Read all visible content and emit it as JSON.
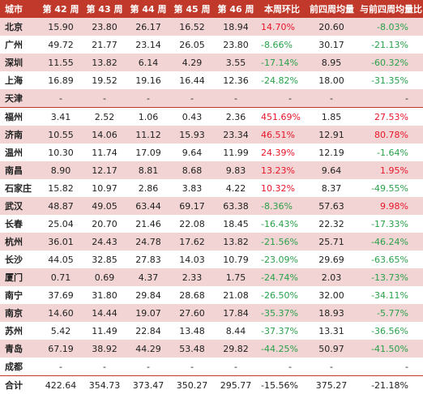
{
  "table": {
    "headers": [
      "城市",
      "第 42 周",
      "第 43 周",
      "第 44 周",
      "第 45 周",
      "第 46 周",
      "本周环比",
      "前四周均量",
      "与前四周均量比"
    ],
    "rows": [
      {
        "city": "北京",
        "w42": "15.90",
        "w43": "23.80",
        "w44": "26.17",
        "w45": "16.52",
        "w46": "18.94",
        "wow": "14.70%",
        "wow_color": "red",
        "avg4": "20.60",
        "vs_avg": "-8.03%",
        "vs_color": "green"
      },
      {
        "city": "广州",
        "w42": "49.72",
        "w43": "21.77",
        "w44": "23.14",
        "w45": "26.05",
        "w46": "23.80",
        "wow": "-8.66%",
        "wow_color": "green",
        "avg4": "30.17",
        "vs_avg": "-21.13%",
        "vs_color": "green"
      },
      {
        "city": "深圳",
        "w42": "11.55",
        "w43": "13.82",
        "w44": "6.14",
        "w45": "4.29",
        "w46": "3.55",
        "wow": "-17.14%",
        "wow_color": "green",
        "avg4": "8.95",
        "vs_avg": "-60.32%",
        "vs_color": "green"
      },
      {
        "city": "上海",
        "w42": "16.89",
        "w43": "19.52",
        "w44": "19.16",
        "w45": "16.44",
        "w46": "12.36",
        "wow": "-24.82%",
        "wow_color": "green",
        "avg4": "18.00",
        "vs_avg": "-31.35%",
        "vs_color": "green"
      },
      {
        "city": "天津",
        "w42": "-",
        "w43": "-",
        "w44": "-",
        "w45": "-",
        "w46": "-",
        "wow": "-",
        "wow_color": "black",
        "avg4": "-",
        "vs_avg": "-",
        "vs_color": "black"
      },
      {
        "city": "福州",
        "w42": "3.41",
        "w43": "2.52",
        "w44": "1.06",
        "w45": "0.43",
        "w46": "2.36",
        "wow": "451.69%",
        "wow_color": "red",
        "avg4": "1.85",
        "vs_avg": "27.53%",
        "vs_color": "red",
        "sep": true
      },
      {
        "city": "济南",
        "w42": "10.55",
        "w43": "14.06",
        "w44": "11.12",
        "w45": "15.93",
        "w46": "23.34",
        "wow": "46.51%",
        "wow_color": "red",
        "avg4": "12.91",
        "vs_avg": "80.78%",
        "vs_color": "red"
      },
      {
        "city": "温州",
        "w42": "10.30",
        "w43": "11.74",
        "w44": "17.09",
        "w45": "9.64",
        "w46": "11.99",
        "wow": "24.39%",
        "wow_color": "red",
        "avg4": "12.19",
        "vs_avg": "-1.64%",
        "vs_color": "green"
      },
      {
        "city": "南昌",
        "w42": "8.90",
        "w43": "12.17",
        "w44": "8.81",
        "w45": "8.68",
        "w46": "9.83",
        "wow": "13.23%",
        "wow_color": "red",
        "avg4": "9.64",
        "vs_avg": "1.95%",
        "vs_color": "red"
      },
      {
        "city": "石家庄",
        "w42": "15.82",
        "w43": "10.97",
        "w44": "2.86",
        "w45": "3.83",
        "w46": "4.22",
        "wow": "10.32%",
        "wow_color": "red",
        "avg4": "8.37",
        "vs_avg": "-49.55%",
        "vs_color": "green"
      },
      {
        "city": "武汉",
        "w42": "48.87",
        "w43": "49.05",
        "w44": "63.44",
        "w45": "69.17",
        "w46": "63.38",
        "wow": "-8.36%",
        "wow_color": "green",
        "avg4": "57.63",
        "vs_avg": "9.98%",
        "vs_color": "red"
      },
      {
        "city": "长春",
        "w42": "25.04",
        "w43": "20.70",
        "w44": "21.46",
        "w45": "22.08",
        "w46": "18.45",
        "wow": "-16.43%",
        "wow_color": "green",
        "avg4": "22.32",
        "vs_avg": "-17.33%",
        "vs_color": "green"
      },
      {
        "city": "杭州",
        "w42": "36.01",
        "w43": "24.43",
        "w44": "24.78",
        "w45": "17.62",
        "w46": "13.82",
        "wow": "-21.56%",
        "wow_color": "green",
        "avg4": "25.71",
        "vs_avg": "-46.24%",
        "vs_color": "green"
      },
      {
        "city": "长沙",
        "w42": "44.05",
        "w43": "32.85",
        "w44": "27.83",
        "w45": "14.03",
        "w46": "10.79",
        "wow": "-23.09%",
        "wow_color": "green",
        "avg4": "29.69",
        "vs_avg": "-63.65%",
        "vs_color": "green"
      },
      {
        "city": "厦门",
        "w42": "0.71",
        "w43": "0.69",
        "w44": "4.37",
        "w45": "2.33",
        "w46": "1.75",
        "wow": "-24.74%",
        "wow_color": "green",
        "avg4": "2.03",
        "vs_avg": "-13.73%",
        "vs_color": "green"
      },
      {
        "city": "南宁",
        "w42": "37.69",
        "w43": "31.80",
        "w44": "29.84",
        "w45": "28.68",
        "w46": "21.08",
        "wow": "-26.50%",
        "wow_color": "green",
        "avg4": "32.00",
        "vs_avg": "-34.11%",
        "vs_color": "green"
      },
      {
        "city": "南京",
        "w42": "14.60",
        "w43": "14.44",
        "w44": "19.07",
        "w45": "27.60",
        "w46": "17.84",
        "wow": "-35.37%",
        "wow_color": "green",
        "avg4": "18.93",
        "vs_avg": "-5.77%",
        "vs_color": "green"
      },
      {
        "city": "苏州",
        "w42": "5.42",
        "w43": "11.49",
        "w44": "22.84",
        "w45": "13.48",
        "w46": "8.44",
        "wow": "-37.37%",
        "wow_color": "green",
        "avg4": "13.31",
        "vs_avg": "-36.56%",
        "vs_color": "green"
      },
      {
        "city": "青岛",
        "w42": "67.19",
        "w43": "38.92",
        "w44": "44.29",
        "w45": "53.48",
        "w46": "29.82",
        "wow": "-44.25%",
        "wow_color": "green",
        "avg4": "50.97",
        "vs_avg": "-41.50%",
        "vs_color": "green"
      },
      {
        "city": "成都",
        "w42": "-",
        "w43": "-",
        "w44": "-",
        "w45": "-",
        "w46": "-",
        "wow": "-",
        "wow_color": "black",
        "avg4": "-",
        "vs_avg": "-",
        "vs_color": "black"
      }
    ],
    "total": {
      "city": "合计",
      "w42": "422.64",
      "w43": "354.73",
      "w44": "373.47",
      "w45": "350.27",
      "w46": "295.77",
      "wow": "-15.56%",
      "wow_color": "black",
      "avg4": "375.27",
      "vs_avg": "-21.18%",
      "vs_color": "black"
    }
  }
}
